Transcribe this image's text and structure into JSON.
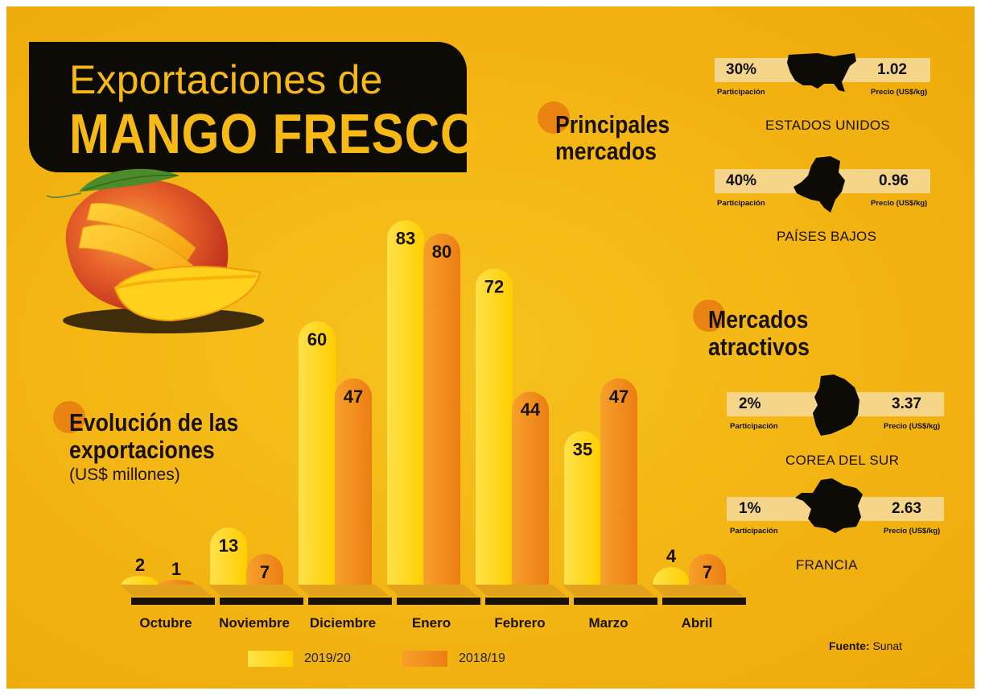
{
  "title": {
    "line1": "Exportaciones de",
    "line2": "MANGO FRESCO"
  },
  "evolution": {
    "heading_line1": "Evolución de las",
    "heading_line2": "exportaciones",
    "unit": "(US$ millones)"
  },
  "principal_markets": {
    "heading_line1": "Principales",
    "heading_line2": "mercados",
    "items": [
      {
        "country": "ESTADOS UNIDOS",
        "share": "30%",
        "share_label": "Participación",
        "price": "1.02",
        "price_label": "Precio (US$/kg)",
        "icon": "usa-map-icon"
      },
      {
        "country": "PAÍSES BAJOS",
        "share": "40%",
        "share_label": "Participación",
        "price": "0.96",
        "price_label": "Precio (US$/kg)",
        "icon": "netherlands-map-icon"
      }
    ]
  },
  "attractive_markets": {
    "heading_line1": "Mercados",
    "heading_line2": "atractivos",
    "items": [
      {
        "country": "COREA DEL SUR",
        "share": "2%",
        "share_label": "Participación",
        "price": "3.37",
        "price_label": "Precio (US$/kg)",
        "icon": "south-korea-map-icon"
      },
      {
        "country": "FRANCIA",
        "share": "1%",
        "share_label": "Participación",
        "price": "2.63",
        "price_label": "Precio (US$/kg)",
        "icon": "france-map-icon"
      }
    ]
  },
  "source": {
    "label": "Fuente:",
    "value": "Sunat"
  },
  "colors": {
    "series_2019_20": "#ffd500",
    "series_2018_19": "#f08a1c",
    "accent_dot": "#e87d12",
    "title_bg": "#0d0b06"
  },
  "chart_data": {
    "type": "bar",
    "title": "",
    "ylabel": "(US$ millones)",
    "categories": [
      "Octubre",
      "Noviembre",
      "Diciembre",
      "Enero",
      "Febrero",
      "Marzo",
      "Abril"
    ],
    "series": [
      {
        "name": "2019/20",
        "values": [
          2,
          13,
          60,
          83,
          72,
          35,
          4
        ]
      },
      {
        "name": "2018/19",
        "values": [
          1,
          7,
          47,
          80,
          44,
          47,
          7
        ]
      }
    ],
    "ylim": [
      0,
      85
    ],
    "grid": false,
    "legend": "bottom"
  }
}
